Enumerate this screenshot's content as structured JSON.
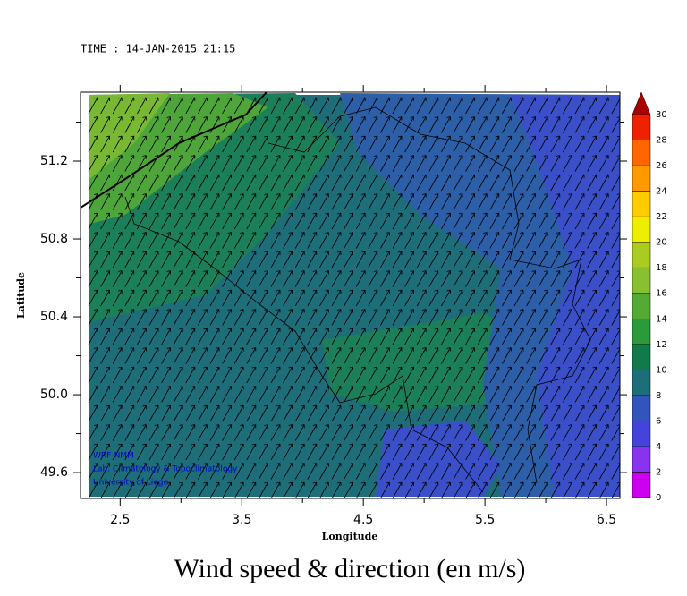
{
  "chart_data": {
    "type": "map",
    "time_label": "TIME : 14-JAN-2015 21:15",
    "title": "Wind speed & direction (en m/s)",
    "xlabel": "Longitude",
    "ylabel": "Latitude",
    "credits": [
      "WRF-NMM",
      "Lab. Climatology & Topoclimatology",
      "University of Liege"
    ],
    "xlim": [
      2.174,
      6.61
    ],
    "ylim": [
      49.467,
      51.554
    ],
    "xticks": [
      2.5,
      3.5,
      4.5,
      5.5,
      6.5
    ],
    "xticks_minor": [
      3,
      4,
      5,
      6
    ],
    "yticks": [
      {
        "value": 49.6,
        "label": "49.6"
      },
      {
        "value": 50,
        "label": "50.0"
      },
      {
        "value": 50.4,
        "label": "50.4"
      },
      {
        "value": 50.8,
        "label": "50.8"
      },
      {
        "value": 51.2,
        "label": "51.2"
      }
    ],
    "yticks_minor": [
      49.8,
      50.2,
      50.6,
      51,
      51.4
    ],
    "colorbar": {
      "levels": [
        0,
        2,
        4,
        6,
        8,
        10,
        12,
        14,
        16,
        18,
        20,
        22,
        24,
        26,
        28,
        30
      ],
      "colors": [
        "#cc00ee",
        "#8833ee",
        "#4444dd",
        "#3355bb",
        "#1e6e7a",
        "#117a4a",
        "#2a9a3a",
        "#55aa33",
        "#88c030",
        "#aacc22",
        "#eeee00",
        "#ffcc00",
        "#ff9900",
        "#ff6600",
        "#ee2200"
      ],
      "extend_color": "#aa0000"
    }
  }
}
